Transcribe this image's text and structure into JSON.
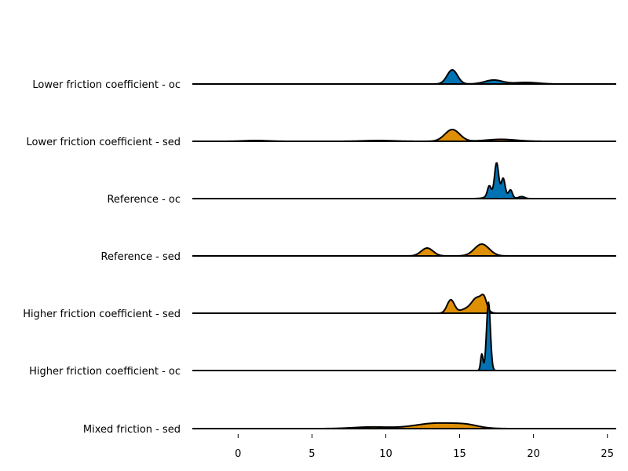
{
  "chart_data": {
    "type": "area",
    "title": "",
    "xlabel": "",
    "ylabel": "",
    "xlim": [
      -3.1,
      25.6
    ],
    "xticks": [
      0,
      5,
      10,
      15,
      20,
      25
    ],
    "xtick_labels": [
      "0",
      "5",
      "10",
      "15",
      "20",
      "25"
    ],
    "grid": false,
    "legend": "none",
    "colors": {
      "oc": "#0173b2",
      "sed": "#de8f05",
      "outline": "#000000"
    },
    "series": [
      {
        "name": "Lower friction coefficient - oc",
        "kind": "oc",
        "peaks": [
          [
            14.5,
            0.35,
            18
          ],
          [
            17.3,
            0.6,
            5
          ],
          [
            19.5,
            0.8,
            2
          ]
        ]
      },
      {
        "name": "Lower friction coefficient - sed",
        "kind": "sed",
        "peaks": [
          [
            1.2,
            0.8,
            1
          ],
          [
            9.5,
            1.0,
            1
          ],
          [
            14.5,
            0.5,
            15
          ],
          [
            17.8,
            1.0,
            2.5
          ]
        ]
      },
      {
        "name": "Reference - oc",
        "kind": "oc",
        "peaks": [
          [
            17.0,
            0.12,
            12
          ],
          [
            17.5,
            0.13,
            37
          ],
          [
            17.95,
            0.12,
            19
          ],
          [
            18.45,
            0.12,
            9
          ],
          [
            19.2,
            0.2,
            2.5
          ],
          [
            17.6,
            0.5,
            9
          ]
        ]
      },
      {
        "name": "Reference - sed",
        "kind": "sed",
        "peaks": [
          [
            12.8,
            0.4,
            10
          ],
          [
            16.5,
            0.5,
            15
          ]
        ]
      },
      {
        "name": "Higher friction coefficient - sed",
        "kind": "sed",
        "peaks": [
          [
            14.4,
            0.25,
            17
          ],
          [
            15.3,
            0.35,
            4
          ],
          [
            16.2,
            0.4,
            20
          ],
          [
            16.65,
            0.18,
            12
          ]
        ]
      },
      {
        "name": "Higher friction coefficient - oc",
        "kind": "oc",
        "peaks": [
          [
            16.5,
            0.08,
            21
          ],
          [
            16.95,
            0.13,
            87
          ]
        ]
      },
      {
        "name": "Mixed friction - sed",
        "kind": "sed",
        "peaks": [
          [
            9.0,
            1.2,
            2
          ],
          [
            13.5,
            1.5,
            7
          ],
          [
            15.5,
            0.8,
            3
          ]
        ]
      }
    ]
  }
}
